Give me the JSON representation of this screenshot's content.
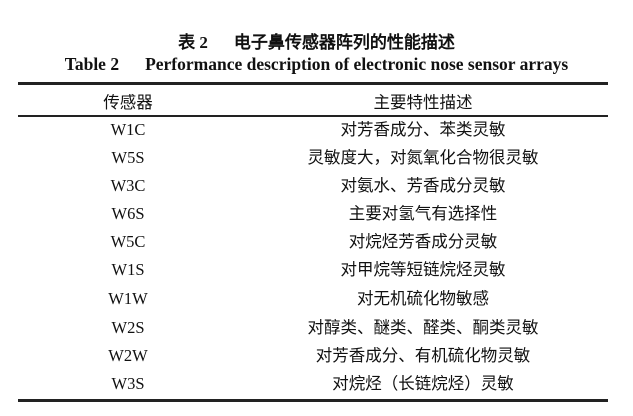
{
  "caption": {
    "cn_label": "表 2",
    "cn_title": "电子鼻传感器阵列的性能描述",
    "en_label": "Table 2",
    "en_title": "Performance description of electronic nose sensor arrays"
  },
  "table": {
    "headers": [
      "传感器",
      "主要特性描述"
    ],
    "rows": [
      [
        "W1C",
        "对芳香成分、苯类灵敏"
      ],
      [
        "W5S",
        "灵敏度大，对氮氧化合物很灵敏"
      ],
      [
        "W3C",
        "对氨水、芳香成分灵敏"
      ],
      [
        "W6S",
        "主要对氢气有选择性"
      ],
      [
        "W5C",
        "对烷烃芳香成分灵敏"
      ],
      [
        "W1S",
        "对甲烷等短链烷烃灵敏"
      ],
      [
        "W1W",
        "对无机硫化物敏感"
      ],
      [
        "W2S",
        "对醇类、醚类、醛类、酮类灵敏"
      ],
      [
        "W2W",
        "对芳香成分、有机硫化物灵敏"
      ],
      [
        "W3S",
        "对烷烃（长链烷烃）灵敏"
      ]
    ]
  }
}
